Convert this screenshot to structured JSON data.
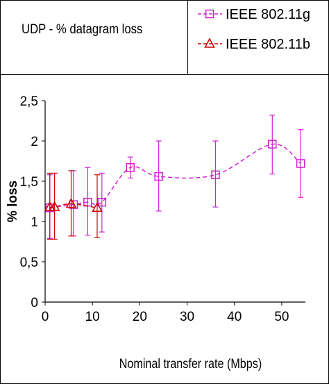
{
  "chart_data": {
    "type": "line",
    "title": "UDP - % datagram loss",
    "xlabel": "Nominal transfer rate (Mbps)",
    "ylabel": "% loss",
    "xlim": [
      0,
      55
    ],
    "ylim": [
      0,
      2.5
    ],
    "x_ticks": [
      "0",
      "10",
      "20",
      "30",
      "40",
      "50"
    ],
    "y_ticks": [
      "0",
      "0,5",
      "1",
      "1,5",
      "2",
      "2,5"
    ],
    "legend_position": "top-right",
    "grid": false,
    "series": [
      {
        "name": "IEEE 802.11g",
        "color": "#d020d0",
        "marker": "square",
        "line": "dashed",
        "points": [
          {
            "x": 1,
            "y": 1.17,
            "err_low": 0.79,
            "err_high": 1.58
          },
          {
            "x": 6,
            "y": 1.21,
            "err_low": 0.82,
            "err_high": 1.63
          },
          {
            "x": 9,
            "y": 1.24,
            "err_low": 0.83,
            "err_high": 1.67
          },
          {
            "x": 12,
            "y": 1.24,
            "err_low": 0.87,
            "err_high": 1.6
          },
          {
            "x": 18,
            "y": 1.67,
            "err_low": 1.54,
            "err_high": 1.8
          },
          {
            "x": 24,
            "y": 1.56,
            "err_low": 1.13,
            "err_high": 2.0
          },
          {
            "x": 36,
            "y": 1.58,
            "err_low": 1.18,
            "err_high": 2.0
          },
          {
            "x": 48,
            "y": 1.96,
            "err_low": 1.59,
            "err_high": 2.32
          },
          {
            "x": 54,
            "y": 1.72,
            "err_low": 1.3,
            "err_high": 2.14
          }
        ]
      },
      {
        "name": "IEEE 802.11b",
        "color": "#d00000",
        "marker": "triangle",
        "line": "dashed",
        "points": [
          {
            "x": 1,
            "y": 1.18,
            "err_low": 0.78,
            "err_high": 1.6
          },
          {
            "x": 2,
            "y": 1.18,
            "err_low": 0.78,
            "err_high": 1.6
          },
          {
            "x": 5.5,
            "y": 1.22,
            "err_low": 0.82,
            "err_high": 1.63
          },
          {
            "x": 11,
            "y": 1.17,
            "err_low": 0.8,
            "err_high": 1.58
          }
        ]
      }
    ]
  }
}
